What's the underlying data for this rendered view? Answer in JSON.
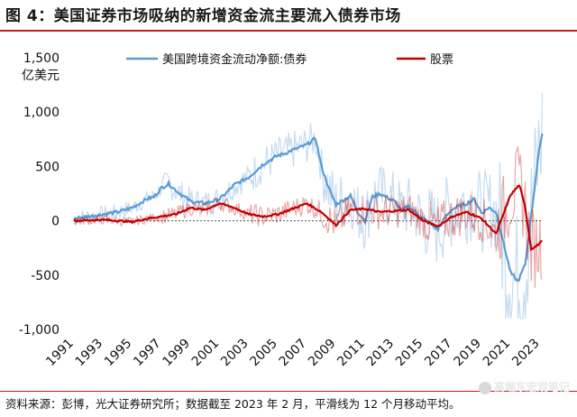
{
  "figure": {
    "title": "图 4：美国证券市场吸纳的新增资金流主要流入债券市场",
    "source": "资料来源：彭博，光大证券研究所；数据截至 2023 年 2 月，平滑线为 12 个月移动平均。",
    "watermark": "高端东宏观笔记"
  },
  "colors": {
    "bond": "#5b9bd5",
    "equity": "#c00000",
    "rule": "#c21d22"
  },
  "chart_data": {
    "type": "line",
    "ylabel": "亿美元",
    "ylim": [
      -1000,
      1500
    ],
    "yticks": [
      -1000,
      -500,
      0,
      500,
      1000,
      1500
    ],
    "ytick_labels": [
      "-1,000",
      "-500",
      "0",
      "500",
      "1,000",
      "1,500"
    ],
    "xlim": [
      1991,
      2023.2
    ],
    "xticks": [
      "1991",
      "1993",
      "1995",
      "1997",
      "1999",
      "2001",
      "2003",
      "2005",
      "2007",
      "2009",
      "2011",
      "2013",
      "2015",
      "2017",
      "2019",
      "2021",
      "2023"
    ],
    "legend_position": "top",
    "series": [
      {
        "name": "美国跨境资金流动净额:债券",
        "color": "#5b9bd5",
        "smoothed": {
          "x": [
            1991,
            1992,
            1993,
            1994,
            1995,
            1996,
            1996.5,
            1997,
            1997.5,
            1998,
            1999,
            2000,
            2001,
            2001.5,
            2002,
            2003,
            2004,
            2005,
            2005.5,
            2006,
            2007,
            2007.6,
            2008,
            2008.5,
            2009,
            2010,
            2010.5,
            2011,
            2011.5,
            2012,
            2013,
            2013.5,
            2014,
            2015,
            2016,
            2016.5,
            2017,
            2018,
            2018.5,
            2019,
            2019.5,
            2020,
            2020.5,
            2021,
            2021.5,
            2022,
            2022.5,
            2023,
            2023.2
          ],
          "y": [
            20,
            40,
            60,
            80,
            120,
            200,
            220,
            300,
            340,
            280,
            180,
            160,
            200,
            260,
            330,
            400,
            520,
            600,
            620,
            650,
            700,
            760,
            500,
            300,
            150,
            230,
            80,
            0,
            220,
            250,
            180,
            100,
            130,
            20,
            -80,
            30,
            110,
            160,
            200,
            70,
            120,
            80,
            -200,
            -480,
            -560,
            -400,
            150,
            700,
            820
          ]
        },
        "raw_range": [
          -900,
          1480
        ]
      },
      {
        "name": "股票",
        "color": "#c00000",
        "smoothed": {
          "x": [
            1991,
            1993,
            1995,
            1996,
            1997,
            1998,
            1999,
            2000,
            2001,
            2002,
            2003,
            2004,
            2005,
            2006,
            2007,
            2008,
            2009,
            2010,
            2011,
            2012,
            2013,
            2014,
            2015,
            2016,
            2017,
            2018,
            2019,
            2020,
            2020.5,
            2021,
            2021.6,
            2022,
            2022.4,
            2022.8,
            2023.2
          ],
          "y": [
            0,
            10,
            -10,
            20,
            40,
            60,
            120,
            100,
            160,
            120,
            60,
            40,
            60,
            110,
            160,
            80,
            -40,
            100,
            110,
            80,
            90,
            100,
            0,
            -50,
            40,
            80,
            20,
            -120,
            60,
            240,
            330,
            120,
            -260,
            -230,
            -180
          ]
        },
        "raw_range": [
          -940,
          700
        ]
      }
    ]
  }
}
